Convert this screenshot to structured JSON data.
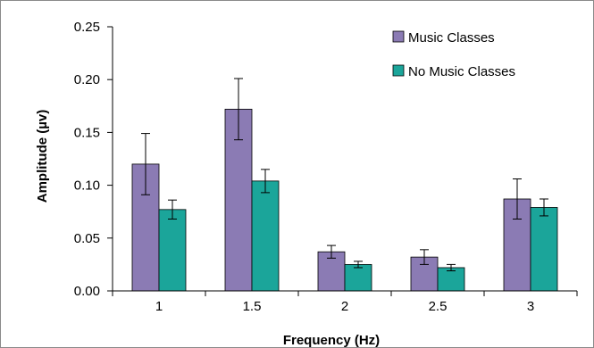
{
  "chart_data": {
    "type": "bar",
    "categories": [
      "1",
      "1.5",
      "2",
      "2.5",
      "3"
    ],
    "series": [
      {
        "name": "Music Classes",
        "color": "#8B7BB4",
        "values": [
          0.12,
          0.172,
          0.037,
          0.032,
          0.087
        ],
        "error": [
          0.029,
          0.029,
          0.006,
          0.007,
          0.019
        ]
      },
      {
        "name": "No Music Classes",
        "color": "#1BA59A",
        "values": [
          0.077,
          0.104,
          0.025,
          0.022,
          0.079
        ],
        "error": [
          0.009,
          0.011,
          0.003,
          0.003,
          0.008
        ]
      }
    ],
    "ylim": [
      0,
      0.25
    ],
    "yticks": [
      "0.00",
      "0.05",
      "0.10",
      "0.15",
      "0.20",
      "0.25"
    ],
    "xlabel": "Frequency (Hz)",
    "ylabel": "Amplitude (µv)",
    "legend_position": "top-right",
    "grid": false
  }
}
